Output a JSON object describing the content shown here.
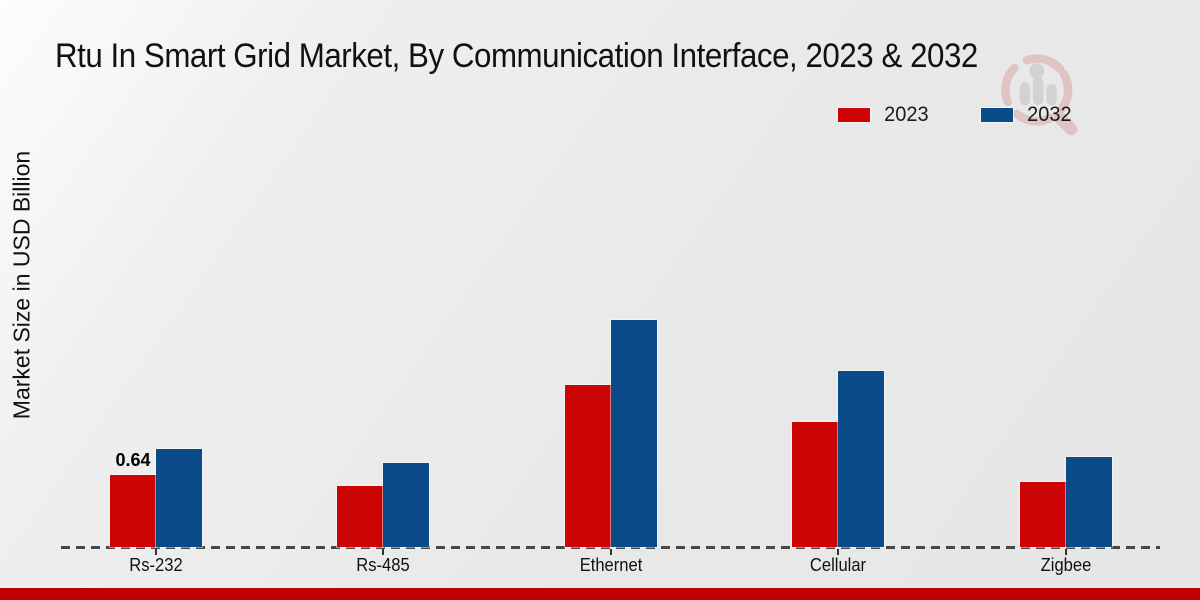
{
  "title": "Rtu In Smart Grid Market, By Communication Interface, 2023 & 2032",
  "ylabel": "Market Size in USD Billion",
  "legend": {
    "position": "top-right",
    "items": [
      {
        "label": "2023",
        "color": "#cc0404"
      },
      {
        "label": "2032",
        "color": "#0a4a87"
      }
    ]
  },
  "colors": {
    "series_2023": "#cc0404",
    "series_2032": "#0a4a87",
    "axis_dashed_line": "#474747",
    "footer_bar": "#c00000",
    "text": "#111111",
    "background": "#e9e9e9"
  },
  "watermark": {
    "name": "magnifier-logo",
    "ring_color": "#c0392b",
    "figure_color": "#808080"
  },
  "chart_data": {
    "type": "bar",
    "title": "Rtu In Smart Grid Market, By Communication Interface, 2023 & 2032",
    "xlabel": "",
    "ylabel": "Market Size in USD Billion",
    "categories": [
      "Rs-232",
      "Rs-485",
      "Ethernet",
      "Cellular",
      "Zigbee"
    ],
    "series": [
      {
        "name": "2023",
        "color": "#cc0404",
        "values": [
          0.64,
          0.54,
          1.44,
          1.11,
          0.58
        ]
      },
      {
        "name": "2032",
        "color": "#0a4a87",
        "values": [
          0.87,
          0.75,
          2.02,
          1.56,
          0.8
        ]
      }
    ],
    "bar_labels": [
      {
        "series": "2023",
        "category": "Rs-232",
        "text": "0.64"
      }
    ],
    "ylim": [
      0,
      2.4
    ],
    "grid": false,
    "y_axis_ticks_visible": false,
    "baseline_style": "dashed",
    "legend_position": "top-right"
  }
}
